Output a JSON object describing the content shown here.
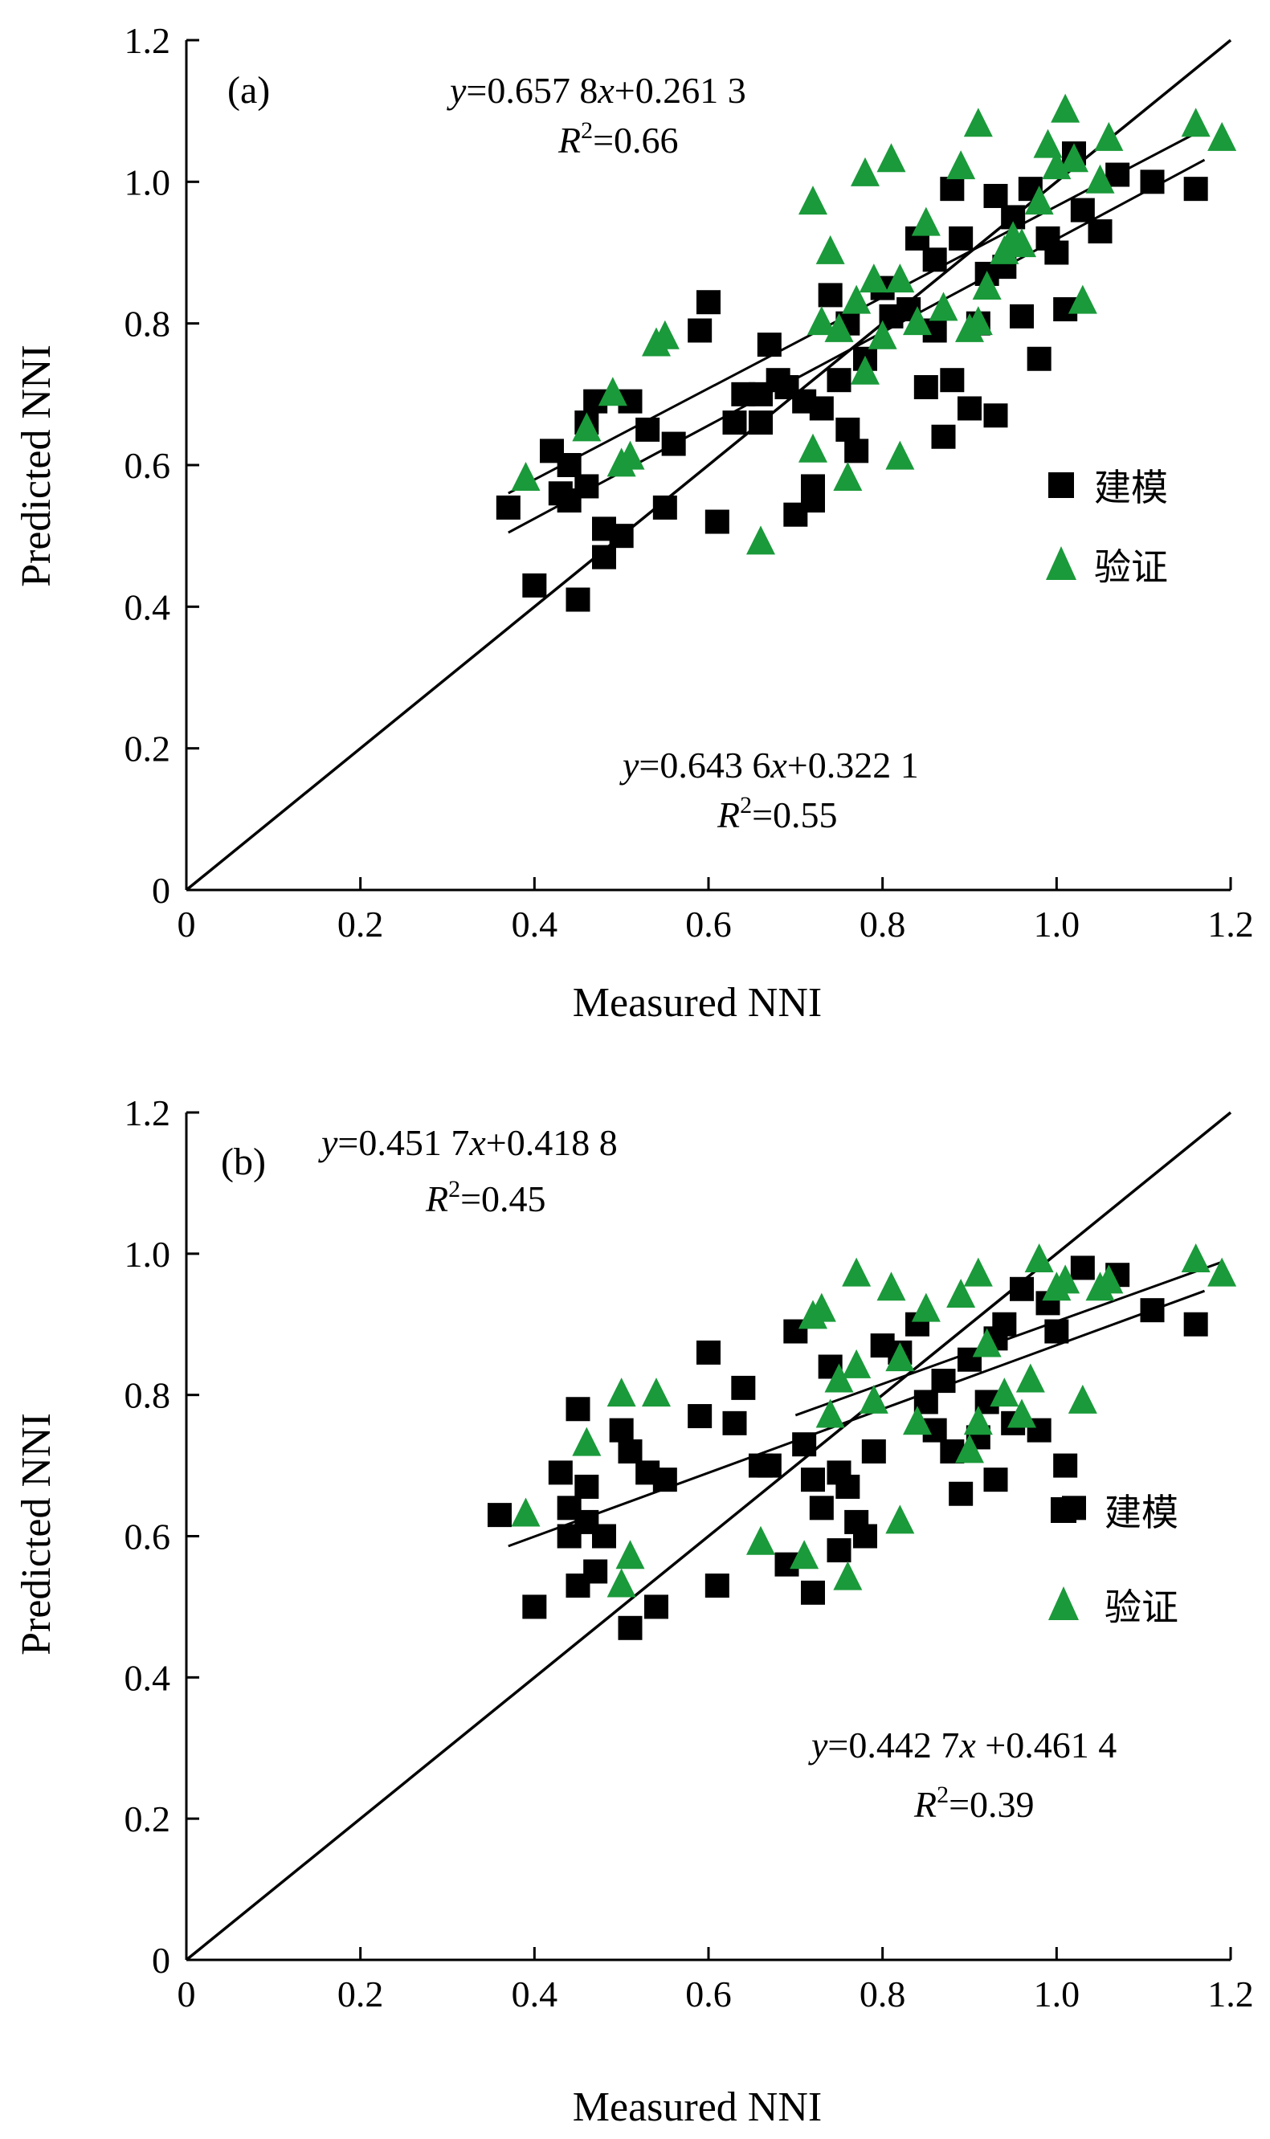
{
  "colors": {
    "modeling": "#000000",
    "validation": "#1a9a3a",
    "axis": "#000000"
  },
  "chart_data": [
    {
      "type": "scatter",
      "panel": "(a)",
      "xlabel": "Measured NNI",
      "ylabel": "Predicted NNI",
      "xlim": [
        0,
        1.2
      ],
      "ylim": [
        0,
        1.2
      ],
      "xticks": [
        "0",
        "0.2",
        "0.4",
        "0.6",
        "0.8",
        "1.0",
        "1.2"
      ],
      "yticks": [
        "0",
        "0.2",
        "0.4",
        "0.6",
        "0.8",
        "1.0",
        "1.2"
      ],
      "legend_position": "right",
      "one_to_one_line": true,
      "annotations": {
        "upper": {
          "eq_pre": "y",
          "eq_mid": "=0.657 8",
          "eq_x": "x",
          "eq_post": "+0.261 3",
          "r2_sym": "R",
          "r2_sup": "2",
          "r2_val": "=0.66"
        },
        "lower": {
          "eq_pre": "y",
          "eq_mid": "=0.643 6",
          "eq_x": "x",
          "eq_post": "+0.322 1",
          "r2_sym": "R",
          "r2_sup": "2",
          "r2_val": "=0.55"
        }
      },
      "series": [
        {
          "name": "建模",
          "marker": "square",
          "color": "#000000",
          "fit": {
            "slope": 0.6436,
            "intercept": 0.3221,
            "x_range": [
              0.37,
              1.17
            ]
          },
          "points": [
            [
              0.37,
              0.54
            ],
            [
              0.4,
              0.43
            ],
            [
              0.42,
              0.62
            ],
            [
              0.43,
              0.56
            ],
            [
              0.44,
              0.6
            ],
            [
              0.44,
              0.55
            ],
            [
              0.45,
              0.41
            ],
            [
              0.46,
              0.57
            ],
            [
              0.46,
              0.66
            ],
            [
              0.47,
              0.69
            ],
            [
              0.48,
              0.51
            ],
            [
              0.48,
              0.47
            ],
            [
              0.5,
              0.5
            ],
            [
              0.51,
              0.69
            ],
            [
              0.53,
              0.65
            ],
            [
              0.55,
              0.54
            ],
            [
              0.56,
              0.63
            ],
            [
              0.59,
              0.79
            ],
            [
              0.6,
              0.83
            ],
            [
              0.61,
              0.52
            ],
            [
              0.63,
              0.66
            ],
            [
              0.64,
              0.7
            ],
            [
              0.66,
              0.66
            ],
            [
              0.66,
              0.7
            ],
            [
              0.67,
              0.77
            ],
            [
              0.68,
              0.72
            ],
            [
              0.69,
              0.71
            ],
            [
              0.7,
              0.53
            ],
            [
              0.71,
              0.69
            ],
            [
              0.72,
              0.57
            ],
            [
              0.72,
              0.55
            ],
            [
              0.73,
              0.68
            ],
            [
              0.74,
              0.84
            ],
            [
              0.75,
              0.72
            ],
            [
              0.76,
              0.8
            ],
            [
              0.76,
              0.65
            ],
            [
              0.77,
              0.62
            ],
            [
              0.78,
              0.75
            ],
            [
              0.8,
              0.85
            ],
            [
              0.81,
              0.81
            ],
            [
              0.83,
              0.82
            ],
            [
              0.84,
              0.92
            ],
            [
              0.85,
              0.71
            ],
            [
              0.86,
              0.89
            ],
            [
              0.86,
              0.79
            ],
            [
              0.87,
              0.64
            ],
            [
              0.88,
              0.72
            ],
            [
              0.88,
              0.99
            ],
            [
              0.89,
              0.92
            ],
            [
              0.9,
              0.68
            ],
            [
              0.91,
              0.8
            ],
            [
              0.92,
              0.87
            ],
            [
              0.93,
              0.98
            ],
            [
              0.93,
              0.67
            ],
            [
              0.94,
              0.88
            ],
            [
              0.95,
              0.95
            ],
            [
              0.96,
              0.81
            ],
            [
              0.97,
              0.99
            ],
            [
              0.98,
              0.75
            ],
            [
              0.99,
              0.92
            ],
            [
              1.0,
              0.9
            ],
            [
              1.01,
              0.82
            ],
            [
              1.02,
              1.04
            ],
            [
              1.03,
              0.96
            ],
            [
              1.05,
              0.93
            ],
            [
              1.07,
              1.01
            ],
            [
              1.11,
              1.0
            ],
            [
              1.16,
              0.99
            ]
          ]
        },
        {
          "name": "验证",
          "marker": "triangle",
          "color": "#1a9a3a",
          "fit": {
            "slope": 0.6578,
            "intercept": 0.2613,
            "x_range": [
              0.37,
              1.17
            ]
          },
          "points": [
            [
              0.39,
              0.58
            ],
            [
              0.46,
              0.65
            ],
            [
              0.49,
              0.7
            ],
            [
              0.5,
              0.6
            ],
            [
              0.51,
              0.61
            ],
            [
              0.54,
              0.77
            ],
            [
              0.55,
              0.78
            ],
            [
              0.66,
              0.49
            ],
            [
              0.72,
              0.62
            ],
            [
              0.72,
              0.97
            ],
            [
              0.73,
              0.8
            ],
            [
              0.74,
              0.9
            ],
            [
              0.75,
              0.79
            ],
            [
              0.76,
              0.58
            ],
            [
              0.77,
              0.83
            ],
            [
              0.78,
              0.73
            ],
            [
              0.78,
              1.01
            ],
            [
              0.79,
              0.86
            ],
            [
              0.8,
              0.78
            ],
            [
              0.81,
              1.03
            ],
            [
              0.82,
              0.61
            ],
            [
              0.82,
              0.86
            ],
            [
              0.84,
              0.8
            ],
            [
              0.85,
              0.94
            ],
            [
              0.87,
              0.82
            ],
            [
              0.89,
              1.02
            ],
            [
              0.9,
              0.79
            ],
            [
              0.91,
              0.8
            ],
            [
              0.91,
              1.08
            ],
            [
              0.92,
              0.85
            ],
            [
              0.94,
              0.9
            ],
            [
              0.95,
              0.92
            ],
            [
              0.96,
              0.91
            ],
            [
              0.98,
              0.97
            ],
            [
              0.99,
              1.05
            ],
            [
              1.0,
              1.02
            ],
            [
              1.01,
              1.1
            ],
            [
              1.02,
              1.03
            ],
            [
              1.03,
              0.83
            ],
            [
              1.05,
              1.0
            ],
            [
              1.06,
              1.06
            ],
            [
              1.16,
              1.08
            ],
            [
              1.19,
              1.06
            ]
          ]
        }
      ]
    },
    {
      "type": "scatter",
      "panel": "(b)",
      "xlabel": "Measured NNI",
      "ylabel": "Predicted NNI",
      "xlim": [
        0,
        1.2
      ],
      "ylim": [
        0,
        1.2
      ],
      "xticks": [
        "0",
        "0.2",
        "0.4",
        "0.6",
        "0.8",
        "1.0",
        "1.2"
      ],
      "yticks": [
        "0",
        "0.2",
        "0.4",
        "0.6",
        "0.8",
        "1.0",
        "1.2"
      ],
      "legend_position": "right",
      "one_to_one_line": true,
      "annotations": {
        "upper": {
          "eq_pre": "y",
          "eq_mid": "=0.451 7",
          "eq_x": "x",
          "eq_post": "+0.418 8",
          "r2_sym": "R",
          "r2_sup": "2",
          "r2_val": "=0.45"
        },
        "lower": {
          "eq_pre": "y",
          "eq_mid": "=0.442 7",
          "eq_x": "x",
          "eq_post": " +0.461 4",
          "r2_sym": "R",
          "r2_sup": "2",
          "r2_val": "=0.39"
        }
      },
      "series": [
        {
          "name": "建模",
          "marker": "square",
          "color": "#000000",
          "fit": {
            "slope": 0.4517,
            "intercept": 0.4188,
            "x_range": [
              0.37,
              1.17
            ]
          },
          "points": [
            [
              0.36,
              0.63
            ],
            [
              0.4,
              0.5
            ],
            [
              0.43,
              0.69
            ],
            [
              0.44,
              0.64
            ],
            [
              0.44,
              0.6
            ],
            [
              0.45,
              0.53
            ],
            [
              0.45,
              0.78
            ],
            [
              0.46,
              0.62
            ],
            [
              0.46,
              0.67
            ],
            [
              0.47,
              0.55
            ],
            [
              0.48,
              0.6
            ],
            [
              0.5,
              0.75
            ],
            [
              0.51,
              0.72
            ],
            [
              0.51,
              0.47
            ],
            [
              0.53,
              0.69
            ],
            [
              0.54,
              0.5
            ],
            [
              0.55,
              0.68
            ],
            [
              0.59,
              0.77
            ],
            [
              0.6,
              0.86
            ],
            [
              0.61,
              0.53
            ],
            [
              0.64,
              0.81
            ],
            [
              0.63,
              0.76
            ],
            [
              0.66,
              0.7
            ],
            [
              0.67,
              0.7
            ],
            [
              0.69,
              0.56
            ],
            [
              0.7,
              0.89
            ],
            [
              0.71,
              0.73
            ],
            [
              0.72,
              0.52
            ],
            [
              0.72,
              0.68
            ],
            [
              0.73,
              0.64
            ],
            [
              0.74,
              0.84
            ],
            [
              0.75,
              0.69
            ],
            [
              0.75,
              0.58
            ],
            [
              0.76,
              0.67
            ],
            [
              0.77,
              0.62
            ],
            [
              0.78,
              0.6
            ],
            [
              0.79,
              0.72
            ],
            [
              0.8,
              0.87
            ],
            [
              0.82,
              0.86
            ],
            [
              0.84,
              0.9
            ],
            [
              0.85,
              0.79
            ],
            [
              0.86,
              0.75
            ],
            [
              0.87,
              0.82
            ],
            [
              0.88,
              0.72
            ],
            [
              0.89,
              0.66
            ],
            [
              0.9,
              0.85
            ],
            [
              0.91,
              0.74
            ],
            [
              0.92,
              0.79
            ],
            [
              0.93,
              0.88
            ],
            [
              0.93,
              0.68
            ],
            [
              0.94,
              0.9
            ],
            [
              0.95,
              0.76
            ],
            [
              0.96,
              0.95
            ],
            [
              0.98,
              0.75
            ],
            [
              0.99,
              0.93
            ],
            [
              1.0,
              0.89
            ],
            [
              1.01,
              0.7
            ],
            [
              1.02,
              0.64
            ],
            [
              1.03,
              0.98
            ],
            [
              1.07,
              0.97
            ],
            [
              1.11,
              0.92
            ],
            [
              1.16,
              0.9
            ]
          ]
        },
        {
          "name": "验证",
          "marker": "triangle",
          "color": "#1a9a3a",
          "fit": {
            "slope": 0.4427,
            "intercept": 0.4614,
            "x_range": [
              0.7,
              1.19
            ]
          },
          "points": [
            [
              0.39,
              0.63
            ],
            [
              0.46,
              0.73
            ],
            [
              0.5,
              0.8
            ],
            [
              0.5,
              0.53
            ],
            [
              0.51,
              0.57
            ],
            [
              0.54,
              0.8
            ],
            [
              0.66,
              0.59
            ],
            [
              0.71,
              0.57
            ],
            [
              0.72,
              0.91
            ],
            [
              0.73,
              0.92
            ],
            [
              0.74,
              0.77
            ],
            [
              0.75,
              0.82
            ],
            [
              0.76,
              0.54
            ],
            [
              0.77,
              0.84
            ],
            [
              0.77,
              0.97
            ],
            [
              0.79,
              0.79
            ],
            [
              0.81,
              0.95
            ],
            [
              0.82,
              0.62
            ],
            [
              0.82,
              0.85
            ],
            [
              0.84,
              0.76
            ],
            [
              0.85,
              0.92
            ],
            [
              0.89,
              0.94
            ],
            [
              0.9,
              0.72
            ],
            [
              0.91,
              0.76
            ],
            [
              0.91,
              0.97
            ],
            [
              0.92,
              0.87
            ],
            [
              0.94,
              0.8
            ],
            [
              0.96,
              0.77
            ],
            [
              0.97,
              0.82
            ],
            [
              0.98,
              0.99
            ],
            [
              1.0,
              0.95
            ],
            [
              1.01,
              0.96
            ],
            [
              1.03,
              0.79
            ],
            [
              1.05,
              0.95
            ],
            [
              1.06,
              0.96
            ],
            [
              1.16,
              0.99
            ],
            [
              1.19,
              0.97
            ]
          ]
        }
      ]
    }
  ]
}
